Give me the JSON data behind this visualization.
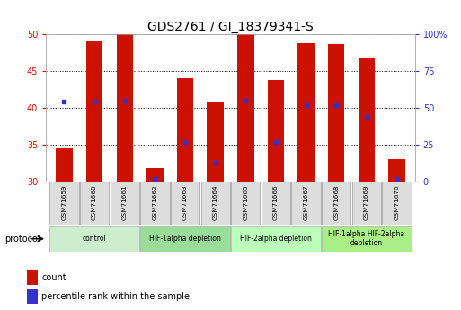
{
  "title": "GDS2761 / GI_18379341-S",
  "samples": [
    "GSM71659",
    "GSM71660",
    "GSM71661",
    "GSM71662",
    "GSM71663",
    "GSM71664",
    "GSM71665",
    "GSM71666",
    "GSM71667",
    "GSM71668",
    "GSM71669",
    "GSM71670"
  ],
  "bar_tops": [
    34.5,
    49.0,
    50.0,
    31.8,
    44.0,
    40.8,
    50.0,
    43.8,
    48.8,
    48.6,
    46.7,
    33.0
  ],
  "bar_bottoms": [
    30,
    30,
    30,
    30,
    30,
    30,
    30,
    30,
    30,
    30,
    30,
    30
  ],
  "percentile_values": [
    40.8,
    40.8,
    41.0,
    30.3,
    35.3,
    32.6,
    41.0,
    35.3,
    40.4,
    40.3,
    38.8,
    30.3
  ],
  "ylim_left": [
    30,
    50
  ],
  "ylim_right": [
    0,
    100
  ],
  "yticks_left": [
    30,
    35,
    40,
    45,
    50
  ],
  "yticks_right": [
    0,
    25,
    50,
    75,
    100
  ],
  "ytick_labels_right": [
    "0",
    "25",
    "50",
    "75",
    "100%"
  ],
  "bar_color": "#CC1100",
  "percentile_color": "#3333CC",
  "grid_color": "#000000",
  "bg_color": "#ffffff",
  "protocol_groups": [
    {
      "label": "control",
      "start": 0,
      "end": 2,
      "color": "#cceecc"
    },
    {
      "label": "HIF-1alpha depletion",
      "start": 3,
      "end": 5,
      "color": "#99dd99"
    },
    {
      "label": "HIF-2alpha depletion",
      "start": 6,
      "end": 8,
      "color": "#bbffbb"
    },
    {
      "label": "HIF-1alpha HIF-2alpha\ndepletion",
      "start": 9,
      "end": 11,
      "color": "#aaee88"
    }
  ],
  "legend_items": [
    {
      "label": "count",
      "color": "#CC1100"
    },
    {
      "label": "percentile rank within the sample",
      "color": "#3333CC"
    }
  ],
  "title_fontsize": 10,
  "tick_fontsize": 7,
  "left_tick_color": "#CC1100",
  "right_tick_color": "#3333CC"
}
